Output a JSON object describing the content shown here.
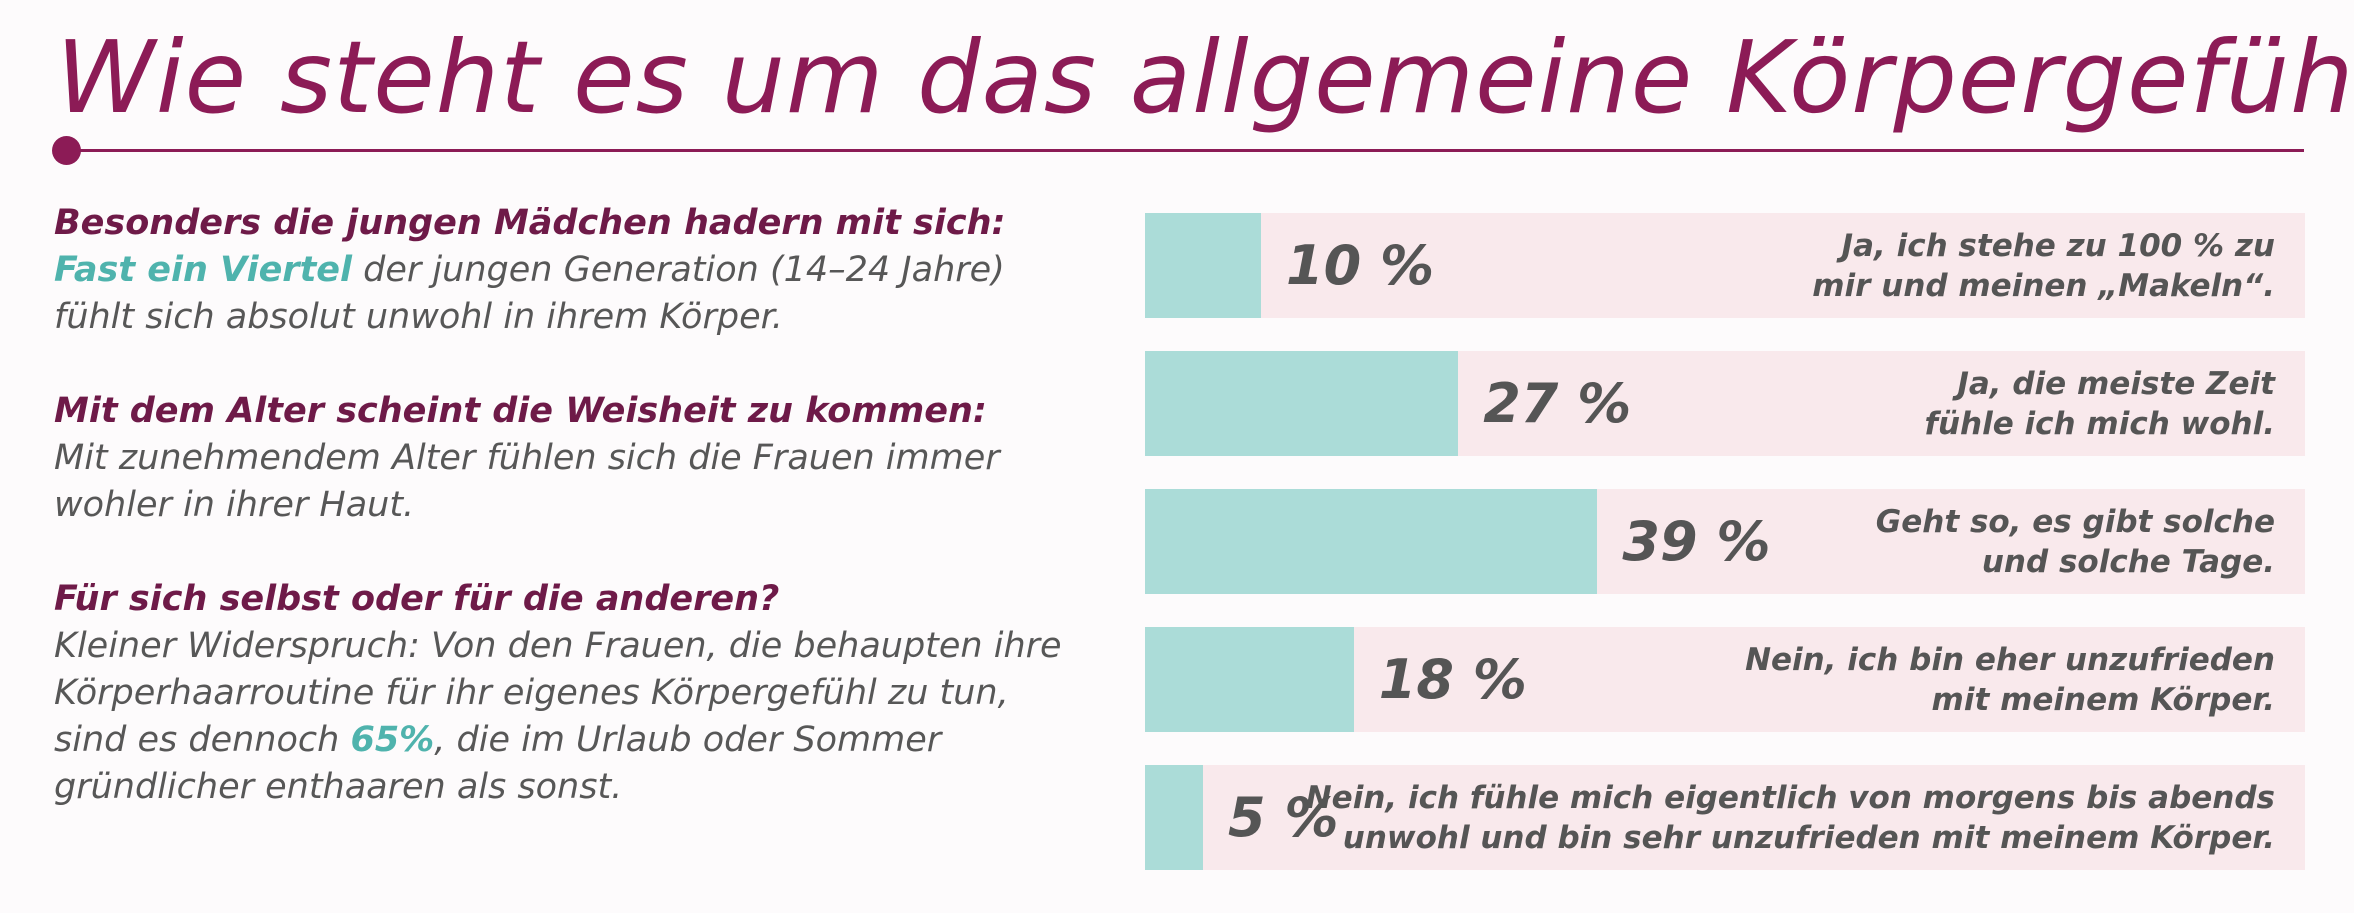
{
  "title": "Wie steht es um das allgemeine Körpergefühl?",
  "colors": {
    "accent": "#8c1b56",
    "highlight": "#4fb3ad",
    "bar": "#abdcd8",
    "track": "#f9e9ec"
  },
  "text_blocks": [
    {
      "heading": "Besonders die jungen Mädchen hadern mit sich:",
      "highlight": "Fast ein Viertel",
      "body": " der jungen Generation (14–24 Jahre) fühlt sich absolut unwohl in ihrem Körper."
    },
    {
      "heading": "Mit dem Alter scheint die Weisheit zu kommen:",
      "body": "Mit zunehmendem Alter fühlen sich die Frauen immer wohler in ihrer Haut."
    },
    {
      "heading": "Für sich selbst oder für die anderen?",
      "body_before": "Kleiner Widerspruch: Von den Frauen, die behaupten ihre Körperhaarroutine für ihr eigenes Körpergefühl zu tun, sind es dennoch ",
      "highlight": "65%",
      "body_after": ", die im Urlaub oder Sommer gründlicher enthaaren als sonst."
    }
  ],
  "chart_data": {
    "type": "bar",
    "orientation": "horizontal",
    "xlim": [
      0,
      100
    ],
    "categories": [
      "Ja, ich stehe zu 100 % zu\nmir und meinen „Makeln“.",
      "Ja, die meiste Zeit\nfühle ich mich wohl.",
      "Geht so, es gibt solche\nund solche Tage.",
      "Nein, ich bin eher unzufrieden\nmit meinem Körper.",
      "Nein, ich fühle mich eigentlich von morgens bis abends\nunwohl und bin sehr unzufrieden mit meinem Körper."
    ],
    "values": [
      10,
      27,
      39,
      18,
      5
    ],
    "value_labels": [
      "10 %",
      "27 %",
      "39 %",
      "18 %",
      "5 %"
    ]
  }
}
